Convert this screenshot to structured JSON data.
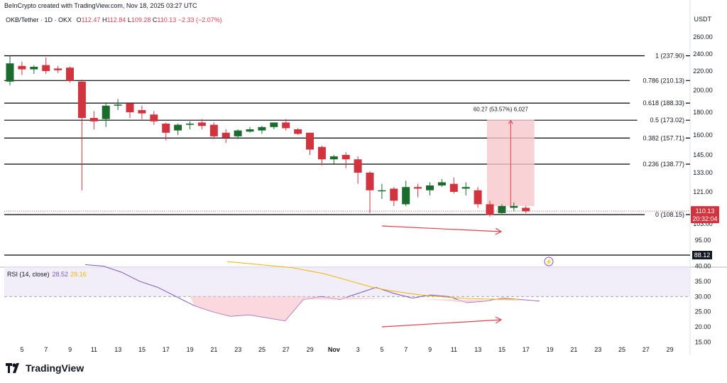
{
  "header": {
    "credit": "BeInCrypto created with TradingView.com, Nov 18, 2025 03:27 UTC",
    "symbol": "OKB/Tether · 1D · OKX",
    "o_label": "O",
    "o_val": "112.47",
    "h_label": "H",
    "h_val": "112.84",
    "l_label": "L",
    "l_val": "109.28",
    "c_label": "C",
    "c_val": "110.13",
    "change": "−2.33 (−2.07%)"
  },
  "currency": "USDT",
  "price_axis": [
    "260.00",
    "240.00",
    "220.00",
    "200.00",
    "180.00",
    "160.00",
    "145.00",
    "133.00",
    "121.00",
    "103.00",
    "95.00",
    "88.12"
  ],
  "current_price": {
    "price": "110.13",
    "countdown": "20:32:04"
  },
  "low_marker": "88.12",
  "fib_levels": [
    {
      "label": "1 (237.90)"
    },
    {
      "label": "0.786 (210.13)"
    },
    {
      "label": "0.618 (188.33)"
    },
    {
      "label": "0.5 (173.02)"
    },
    {
      "label": "0.382 (157.71)"
    },
    {
      "label": "0.236 (138.77)"
    },
    {
      "label": "0 (108.15)"
    }
  ],
  "measure_label": "60.27 (53.57%) 6,027",
  "rsi": {
    "title": "RSI (14, close)",
    "value": "28.52",
    "ma": "29.16",
    "axis": [
      "40.00",
      "35.00",
      "30.00",
      "25.00",
      "20.00",
      "15.00"
    ]
  },
  "date_axis": [
    "5",
    "7",
    "9",
    "11",
    "13",
    "15",
    "17",
    "19",
    "21",
    "23",
    "25",
    "27",
    "29",
    "Nov",
    "3",
    "5",
    "7",
    "9",
    "11",
    "13",
    "15",
    "17",
    "19",
    "21",
    "23",
    "25",
    "27",
    "29"
  ],
  "brand": "TradingView",
  "colors": {
    "up": "#1b6b2f",
    "down": "#d1333f",
    "fib": "#000000",
    "rsi": "#7e57c2",
    "rsi_ma": "#f0b400",
    "arrow": "#e0414e"
  },
  "chart_data": {
    "type": "candlestick",
    "ylim": [
      88,
      262
    ],
    "candles": [
      {
        "o": 209,
        "h": 238,
        "l": 205,
        "c": 229
      },
      {
        "o": 226,
        "h": 231,
        "l": 216,
        "c": 222
      },
      {
        "o": 222,
        "h": 227,
        "l": 217,
        "c": 225
      },
      {
        "o": 227,
        "h": 236,
        "l": 217,
        "c": 220
      },
      {
        "o": 223,
        "h": 226,
        "l": 218,
        "c": 221
      },
      {
        "o": 224,
        "h": 225,
        "l": 208,
        "c": 210
      },
      {
        "o": 209,
        "h": 211,
        "l": 122,
        "c": 175
      },
      {
        "o": 175,
        "h": 181,
        "l": 165,
        "c": 172
      },
      {
        "o": 174,
        "h": 189,
        "l": 167,
        "c": 186
      },
      {
        "o": 186,
        "h": 192,
        "l": 182,
        "c": 187
      },
      {
        "o": 188,
        "h": 189,
        "l": 175,
        "c": 180
      },
      {
        "o": 182,
        "h": 186,
        "l": 174,
        "c": 179
      },
      {
        "o": 178,
        "h": 181,
        "l": 169,
        "c": 172
      },
      {
        "o": 170,
        "h": 171,
        "l": 156,
        "c": 162
      },
      {
        "o": 164,
        "h": 170,
        "l": 160,
        "c": 169
      },
      {
        "o": 169,
        "h": 172,
        "l": 165,
        "c": 170
      },
      {
        "o": 171,
        "h": 174,
        "l": 165,
        "c": 168
      },
      {
        "o": 169,
        "h": 171,
        "l": 157,
        "c": 159
      },
      {
        "o": 162,
        "h": 165,
        "l": 154,
        "c": 158
      },
      {
        "o": 159,
        "h": 165,
        "l": 157,
        "c": 164
      },
      {
        "o": 163,
        "h": 167,
        "l": 162,
        "c": 165
      },
      {
        "o": 164,
        "h": 168,
        "l": 161,
        "c": 167
      },
      {
        "o": 167,
        "h": 170,
        "l": 165,
        "c": 171
      },
      {
        "o": 171,
        "h": 174,
        "l": 164,
        "c": 166
      },
      {
        "o": 165,
        "h": 166,
        "l": 160,
        "c": 161
      },
      {
        "o": 162,
        "h": 162,
        "l": 145,
        "c": 149
      },
      {
        "o": 151,
        "h": 152,
        "l": 138,
        "c": 142
      },
      {
        "o": 142,
        "h": 145,
        "l": 139,
        "c": 144
      },
      {
        "o": 145,
        "h": 147,
        "l": 136,
        "c": 142
      },
      {
        "o": 142,
        "h": 144,
        "l": 126,
        "c": 133
      },
      {
        "o": 133,
        "h": 134,
        "l": 109,
        "c": 122
      },
      {
        "o": 122,
        "h": 126,
        "l": 117,
        "c": 122
      },
      {
        "o": 123,
        "h": 124,
        "l": 113,
        "c": 116
      },
      {
        "o": 114,
        "h": 128,
        "l": 113,
        "c": 124
      },
      {
        "o": 124,
        "h": 126,
        "l": 118,
        "c": 123
      },
      {
        "o": 122,
        "h": 127,
        "l": 119,
        "c": 125
      },
      {
        "o": 125,
        "h": 129,
        "l": 124,
        "c": 127
      },
      {
        "o": 126,
        "h": 130,
        "l": 120,
        "c": 121
      },
      {
        "o": 123,
        "h": 127,
        "l": 119,
        "c": 124
      },
      {
        "o": 122,
        "h": 124,
        "l": 112,
        "c": 114
      },
      {
        "o": 114,
        "h": 116,
        "l": 107,
        "c": 108
      },
      {
        "o": 109,
        "h": 114,
        "l": 108,
        "c": 113
      },
      {
        "o": 112,
        "h": 115,
        "l": 110,
        "c": 113
      },
      {
        "o": 112,
        "h": 113,
        "l": 109,
        "c": 110
      }
    ],
    "fib_values": [
      237.9,
      210.13,
      188.33,
      173.02,
      157.71,
      138.77,
      108.15
    ],
    "measure": {
      "from": 113,
      "to": 173.5
    },
    "rsi_values": [
      41,
      40,
      38,
      35,
      33,
      30,
      27,
      25,
      23.5,
      24,
      23,
      22,
      29,
      30,
      29,
      31,
      33,
      31,
      29.5,
      30.5,
      30,
      28,
      28.5,
      29.5,
      29,
      28.5
    ],
    "rsi_ma_values": [
      41.5,
      41,
      40.5,
      40,
      39.5,
      38.5,
      37.5,
      36,
      34.5,
      33,
      32,
      31.2,
      30.5,
      30,
      29.6,
      29.3,
      29.2,
      29.1,
      29.16
    ],
    "rsi_ylim": [
      13,
      42
    ]
  }
}
